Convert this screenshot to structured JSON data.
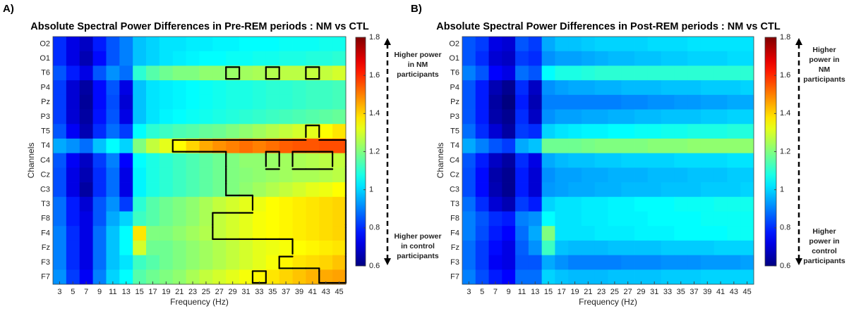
{
  "chart_data": [
    {
      "type": "heatmap",
      "panel_label": "A)",
      "title": "Absolute Spectral Power Differences in Pre-REM periods : NM vs CTL",
      "xlabel": "Frequency (Hz)",
      "ylabel": "Channels",
      "x": [
        3,
        5,
        7,
        9,
        11,
        13,
        15,
        17,
        19,
        21,
        23,
        25,
        27,
        29,
        31,
        33,
        35,
        37,
        39,
        41,
        43,
        45
      ],
      "xlim": [
        2,
        46
      ],
      "xticks": [
        3,
        5,
        7,
        9,
        11,
        13,
        15,
        17,
        19,
        21,
        23,
        25,
        27,
        29,
        31,
        33,
        35,
        37,
        39,
        41,
        43,
        45
      ],
      "y": [
        "O2",
        "O1",
        "T6",
        "P4",
        "Pz",
        "P3",
        "T5",
        "T4",
        "C4",
        "Cz",
        "C3",
        "T3",
        "F8",
        "F4",
        "Fz",
        "F3",
        "F7"
      ],
      "z": [
        [
          0.8,
          0.72,
          0.68,
          0.78,
          0.85,
          0.9,
          0.98,
          1.0,
          1.02,
          1.02,
          1.03,
          1.03,
          1.04,
          1.04,
          1.05,
          1.05,
          1.05,
          1.06,
          1.06,
          1.06,
          1.07,
          1.07
        ],
        [
          0.8,
          0.72,
          0.66,
          0.76,
          0.85,
          0.9,
          0.98,
          1.0,
          1.02,
          1.03,
          1.04,
          1.05,
          1.05,
          1.06,
          1.06,
          1.07,
          1.07,
          1.08,
          1.08,
          1.09,
          1.09,
          1.1
        ],
        [
          0.85,
          0.78,
          0.72,
          0.85,
          0.92,
          0.88,
          1.1,
          1.15,
          1.18,
          1.2,
          1.2,
          1.22,
          1.22,
          1.23,
          1.24,
          1.25,
          1.26,
          1.27,
          1.27,
          1.28,
          1.28,
          1.3
        ],
        [
          0.82,
          0.7,
          0.64,
          0.76,
          0.85,
          0.72,
          0.98,
          1.02,
          1.03,
          1.04,
          1.05,
          1.06,
          1.07,
          1.08,
          1.08,
          1.09,
          1.1,
          1.1,
          1.11,
          1.12,
          1.12,
          1.13
        ],
        [
          0.82,
          0.7,
          0.63,
          0.76,
          0.84,
          0.7,
          0.98,
          1.02,
          1.03,
          1.04,
          1.05,
          1.06,
          1.07,
          1.08,
          1.08,
          1.09,
          1.1,
          1.1,
          1.11,
          1.12,
          1.12,
          1.13
        ],
        [
          0.82,
          0.7,
          0.64,
          0.77,
          0.85,
          0.72,
          0.98,
          1.02,
          1.04,
          1.05,
          1.06,
          1.07,
          1.08,
          1.09,
          1.1,
          1.11,
          1.12,
          1.13,
          1.14,
          1.15,
          1.16,
          1.17
        ],
        [
          0.85,
          0.74,
          0.66,
          0.8,
          0.88,
          0.82,
          1.05,
          1.1,
          1.12,
          1.14,
          1.15,
          1.17,
          1.18,
          1.2,
          1.22,
          1.24,
          1.26,
          1.28,
          1.3,
          1.32,
          1.35,
          1.38
        ],
        [
          0.95,
          0.92,
          0.88,
          0.98,
          1.05,
          1.0,
          1.2,
          1.28,
          1.32,
          1.35,
          1.4,
          1.45,
          1.48,
          1.5,
          1.52,
          1.5,
          1.52,
          1.54,
          1.55,
          1.55,
          1.56,
          1.56
        ],
        [
          0.85,
          0.74,
          0.68,
          0.82,
          0.9,
          0.75,
          1.05,
          1.08,
          1.1,
          1.12,
          1.14,
          1.16,
          1.18,
          1.2,
          1.22,
          1.22,
          1.23,
          1.24,
          1.25,
          1.26,
          1.27,
          1.28
        ],
        [
          0.84,
          0.72,
          0.66,
          0.8,
          0.88,
          0.72,
          1.04,
          1.08,
          1.1,
          1.12,
          1.14,
          1.16,
          1.18,
          1.2,
          1.21,
          1.22,
          1.23,
          1.24,
          1.25,
          1.25,
          1.26,
          1.27
        ],
        [
          0.84,
          0.72,
          0.64,
          0.8,
          0.88,
          0.72,
          1.04,
          1.08,
          1.1,
          1.12,
          1.14,
          1.16,
          1.18,
          1.2,
          1.22,
          1.24,
          1.26,
          1.28,
          1.3,
          1.32,
          1.33,
          1.35
        ],
        [
          0.88,
          0.78,
          0.7,
          0.85,
          0.92,
          0.82,
          1.1,
          1.15,
          1.18,
          1.2,
          1.22,
          1.25,
          1.28,
          1.3,
          1.32,
          1.33,
          1.35,
          1.36,
          1.37,
          1.38,
          1.39,
          1.4
        ],
        [
          0.88,
          0.78,
          0.72,
          0.85,
          0.95,
          1.0,
          1.12,
          1.15,
          1.18,
          1.2,
          1.22,
          1.25,
          1.28,
          1.3,
          1.32,
          1.34,
          1.35,
          1.36,
          1.37,
          1.38,
          1.39,
          1.4
        ],
        [
          0.9,
          0.8,
          0.72,
          0.88,
          0.98,
          1.05,
          1.38,
          1.2,
          1.2,
          1.22,
          1.24,
          1.26,
          1.28,
          1.3,
          1.32,
          1.34,
          1.35,
          1.36,
          1.37,
          1.38,
          1.39,
          1.4
        ],
        [
          0.9,
          0.8,
          0.72,
          0.88,
          0.98,
          1.05,
          1.3,
          1.18,
          1.18,
          1.2,
          1.22,
          1.24,
          1.26,
          1.28,
          1.3,
          1.32,
          1.33,
          1.34,
          1.35,
          1.36,
          1.37,
          1.38
        ],
        [
          0.9,
          0.8,
          0.72,
          0.88,
          0.98,
          1.02,
          1.12,
          1.15,
          1.18,
          1.2,
          1.22,
          1.24,
          1.26,
          1.28,
          1.3,
          1.32,
          1.34,
          1.36,
          1.38,
          1.39,
          1.4,
          1.42
        ],
        [
          0.92,
          0.82,
          0.74,
          0.9,
          1.0,
          1.05,
          1.15,
          1.18,
          1.2,
          1.22,
          1.25,
          1.28,
          1.3,
          1.32,
          1.34,
          1.36,
          1.38,
          1.4,
          1.42,
          1.44,
          1.45,
          1.46
        ]
      ],
      "significant": [
        [
          2,
          13
        ],
        [
          2,
          16
        ],
        [
          2,
          19
        ],
        [
          6,
          19
        ],
        [
          7,
          9
        ],
        [
          7,
          10
        ],
        [
          7,
          11
        ],
        [
          7,
          12
        ],
        [
          7,
          13
        ],
        [
          7,
          14
        ],
        [
          7,
          15
        ],
        [
          7,
          16
        ],
        [
          7,
          17
        ],
        [
          7,
          18
        ],
        [
          7,
          19
        ],
        [
          7,
          20
        ],
        [
          7,
          21
        ],
        [
          8,
          13
        ],
        [
          8,
          14
        ],
        [
          8,
          15
        ],
        [
          8,
          17
        ],
        [
          8,
          21
        ],
        [
          9,
          13
        ],
        [
          9,
          14
        ],
        [
          9,
          15
        ],
        [
          9,
          16
        ],
        [
          9,
          17
        ],
        [
          9,
          18
        ],
        [
          9,
          19
        ],
        [
          9,
          20
        ],
        [
          9,
          21
        ],
        [
          10,
          13
        ],
        [
          10,
          14
        ],
        [
          10,
          15
        ],
        [
          10,
          16
        ],
        [
          10,
          17
        ],
        [
          10,
          18
        ],
        [
          10,
          19
        ],
        [
          10,
          20
        ],
        [
          10,
          21
        ],
        [
          11,
          15
        ],
        [
          11,
          16
        ],
        [
          11,
          17
        ],
        [
          11,
          18
        ],
        [
          11,
          19
        ],
        [
          11,
          20
        ],
        [
          11,
          21
        ],
        [
          12,
          12
        ],
        [
          12,
          13
        ],
        [
          12,
          14
        ],
        [
          12,
          15
        ],
        [
          12,
          16
        ],
        [
          12,
          17
        ],
        [
          12,
          18
        ],
        [
          12,
          19
        ],
        [
          12,
          20
        ],
        [
          12,
          21
        ],
        [
          13,
          12
        ],
        [
          13,
          13
        ],
        [
          13,
          14
        ],
        [
          13,
          15
        ],
        [
          13,
          16
        ],
        [
          13,
          17
        ],
        [
          13,
          18
        ],
        [
          13,
          19
        ],
        [
          13,
          20
        ],
        [
          13,
          21
        ],
        [
          14,
          18
        ],
        [
          14,
          19
        ],
        [
          14,
          20
        ],
        [
          14,
          21
        ],
        [
          15,
          17
        ],
        [
          15,
          18
        ],
        [
          15,
          19
        ],
        [
          15,
          20
        ],
        [
          15,
          21
        ],
        [
          16,
          15
        ],
        [
          16,
          20
        ],
        [
          16,
          21
        ]
      ],
      "colorbar": {
        "colormap": "jet",
        "clim": [
          0.6,
          1.8
        ],
        "ticks": [
          0.6,
          0.8,
          1,
          1.2,
          1.4,
          1.6,
          1.8
        ]
      },
      "annotations": [
        [
          "Higher power",
          "in NM",
          "participants"
        ],
        [
          "Higher power",
          "in control",
          "participants"
        ]
      ]
    },
    {
      "type": "heatmap",
      "panel_label": "B)",
      "title": "Absolute Spectral Power Differences in Post-REM periods : NM vs CTL",
      "xlabel": "Frequency (Hz)",
      "ylabel": "Channels",
      "x": [
        3,
        5,
        7,
        9,
        11,
        13,
        15,
        17,
        19,
        21,
        23,
        25,
        27,
        29,
        31,
        33,
        35,
        37,
        39,
        41,
        43,
        45
      ],
      "xlim": [
        2,
        46
      ],
      "xticks": [
        3,
        5,
        7,
        9,
        11,
        13,
        15,
        17,
        19,
        21,
        23,
        25,
        27,
        29,
        31,
        33,
        35,
        37,
        39,
        41,
        43,
        45
      ],
      "y": [
        "O2",
        "O1",
        "T6",
        "P4",
        "Pz",
        "P3",
        "T5",
        "T4",
        "C4",
        "Cz",
        "C3",
        "T3",
        "F8",
        "F4",
        "Fz",
        "F3",
        "F7"
      ],
      "z": [
        [
          0.85,
          0.82,
          0.72,
          0.7,
          0.85,
          0.82,
          0.95,
          0.98,
          0.98,
          0.99,
          1.0,
          1.0,
          1.0,
          1.0,
          1.01,
          1.01,
          1.01,
          1.02,
          1.02,
          1.02,
          1.02,
          1.02
        ],
        [
          0.85,
          0.8,
          0.7,
          0.68,
          0.82,
          0.8,
          0.92,
          0.94,
          0.94,
          0.95,
          0.96,
          0.97,
          0.97,
          0.98,
          0.98,
          0.99,
          0.99,
          1.0,
          1.0,
          1.0,
          1.01,
          1.01
        ],
        [
          0.9,
          0.85,
          0.75,
          0.72,
          0.88,
          0.85,
          1.05,
          1.08,
          1.08,
          1.09,
          1.1,
          1.1,
          1.1,
          1.1,
          1.1,
          1.1,
          1.1,
          1.1,
          1.1,
          1.1,
          1.1,
          1.1
        ],
        [
          0.85,
          0.78,
          0.66,
          0.62,
          0.8,
          0.68,
          0.92,
          0.94,
          0.95,
          0.95,
          0.96,
          0.96,
          0.97,
          0.97,
          0.97,
          0.98,
          0.98,
          0.98,
          0.99,
          0.99,
          0.99,
          1.0
        ],
        [
          0.85,
          0.78,
          0.64,
          0.6,
          0.78,
          0.66,
          0.9,
          0.9,
          0.9,
          0.9,
          0.9,
          0.9,
          0.91,
          0.91,
          0.92,
          0.92,
          0.93,
          0.93,
          0.94,
          0.94,
          0.95,
          0.95
        ],
        [
          0.85,
          0.78,
          0.65,
          0.62,
          0.8,
          0.68,
          0.92,
          0.94,
          0.94,
          0.95,
          0.95,
          0.96,
          0.96,
          0.97,
          0.97,
          0.98,
          0.98,
          0.98,
          0.99,
          0.99,
          1.0,
          1.0
        ],
        [
          0.88,
          0.8,
          0.7,
          0.64,
          0.82,
          0.8,
          1.0,
          1.02,
          1.03,
          1.04,
          1.04,
          1.05,
          1.05,
          1.06,
          1.06,
          1.07,
          1.07,
          1.08,
          1.08,
          1.08,
          1.09,
          1.09
        ],
        [
          0.95,
          0.9,
          0.85,
          0.82,
          0.95,
          0.98,
          1.18,
          1.18,
          1.18,
          1.19,
          1.2,
          1.2,
          1.2,
          1.2,
          1.21,
          1.21,
          1.21,
          1.22,
          1.22,
          1.22,
          1.22,
          1.22
        ],
        [
          0.85,
          0.78,
          0.68,
          0.64,
          0.8,
          0.72,
          0.95,
          0.97,
          0.98,
          0.98,
          0.99,
          0.99,
          1.0,
          1.0,
          1.0,
          1.0,
          1.01,
          1.01,
          1.01,
          1.01,
          1.02,
          1.02
        ],
        [
          0.84,
          0.76,
          0.65,
          0.62,
          0.78,
          0.7,
          0.92,
          0.94,
          0.94,
          0.95,
          0.95,
          0.96,
          0.96,
          0.96,
          0.97,
          0.97,
          0.97,
          0.98,
          0.98,
          0.98,
          0.99,
          0.99
        ],
        [
          0.84,
          0.76,
          0.66,
          0.62,
          0.78,
          0.7,
          0.93,
          0.94,
          0.95,
          0.95,
          0.96,
          0.96,
          0.97,
          0.97,
          0.97,
          0.98,
          0.98,
          0.98,
          0.99,
          0.99,
          0.99,
          1.0
        ],
        [
          0.88,
          0.8,
          0.7,
          0.66,
          0.82,
          0.78,
          1.0,
          1.02,
          1.02,
          1.03,
          1.03,
          1.04,
          1.04,
          1.05,
          1.05,
          1.05,
          1.06,
          1.06,
          1.06,
          1.07,
          1.07,
          1.07
        ],
        [
          0.9,
          0.85,
          0.8,
          0.78,
          0.9,
          0.92,
          1.05,
          1.02,
          1.02,
          1.03,
          1.03,
          1.04,
          1.04,
          1.04,
          1.05,
          1.05,
          1.05,
          1.05,
          1.06,
          1.06,
          1.06,
          1.06
        ],
        [
          0.9,
          0.84,
          0.78,
          0.75,
          0.88,
          0.95,
          1.2,
          1.02,
          1.02,
          1.02,
          1.03,
          1.03,
          1.03,
          1.04,
          1.04,
          1.04,
          1.05,
          1.05,
          1.05,
          1.05,
          1.06,
          1.06
        ],
        [
          0.88,
          0.82,
          0.76,
          0.72,
          0.86,
          0.92,
          1.12,
          0.98,
          0.97,
          0.97,
          0.97,
          0.98,
          0.98,
          0.98,
          0.98,
          0.99,
          0.99,
          0.99,
          0.99,
          1.0,
          1.0,
          1.0
        ],
        [
          0.88,
          0.82,
          0.74,
          0.72,
          0.85,
          0.85,
          0.95,
          0.92,
          0.9,
          0.9,
          0.9,
          0.9,
          0.91,
          0.91,
          0.91,
          0.92,
          0.92,
          0.92,
          0.93,
          0.93,
          0.93,
          0.94
        ],
        [
          0.9,
          0.84,
          0.78,
          0.75,
          0.88,
          0.88,
          1.0,
          0.98,
          0.97,
          0.97,
          0.97,
          0.98,
          0.98,
          0.98,
          0.98,
          0.99,
          0.99,
          0.99,
          1.0,
          1.0,
          1.0,
          1.0
        ]
      ],
      "colorbar": {
        "colormap": "jet",
        "clim": [
          0.6,
          1.8
        ],
        "ticks": [
          0.6,
          0.8,
          1,
          1.2,
          1.4,
          1.6,
          1.8
        ]
      },
      "annotations": [
        [
          "Higher",
          "power in",
          "NM",
          "participants"
        ],
        [
          "Higher",
          "power in",
          "control",
          "participants"
        ]
      ]
    }
  ]
}
